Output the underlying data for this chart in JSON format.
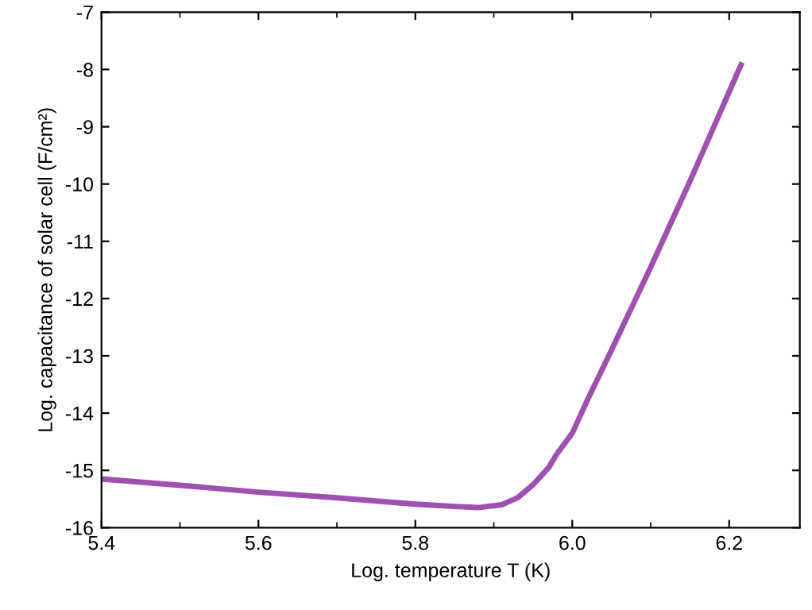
{
  "chart_data": {
    "type": "line",
    "xlabel": "Log. temperature T (K)",
    "ylabel": "Log. capacitance of solar cell (F/cm²)",
    "x": [
      5.4,
      5.5,
      5.6,
      5.7,
      5.8,
      5.85,
      5.88,
      5.91,
      5.93,
      5.95,
      5.96,
      5.97,
      5.98,
      6.0,
      6.02,
      6.05,
      6.1,
      6.15,
      6.215
    ],
    "series": [
      {
        "color": "#a050b0",
        "values": [
          -15.15,
          -15.26,
          -15.38,
          -15.48,
          -15.59,
          -15.63,
          -15.65,
          -15.6,
          -15.48,
          -15.25,
          -15.1,
          -14.95,
          -14.72,
          -14.35,
          -13.75,
          -12.9,
          -11.45,
          -9.95,
          -7.92
        ]
      }
    ],
    "xlim": [
      5.4,
      6.29
    ],
    "ylim": [
      -16,
      -7
    ],
    "xticks": [
      5.4,
      {
        "value": 5.5,
        "label": null
      },
      5.6,
      {
        "value": 5.7,
        "label": null
      },
      5.8,
      {
        "value": 5.9,
        "label": null
      },
      {
        "value": 6.0,
        "label": "6.0"
      },
      {
        "value": 6.1,
        "label": null
      },
      6.2
    ],
    "yticks": [
      -16,
      -15,
      -14,
      -13,
      -12,
      -11,
      -10,
      -9,
      -8,
      -7
    ],
    "grid": false,
    "marker": "none",
    "line_style": "solid"
  }
}
